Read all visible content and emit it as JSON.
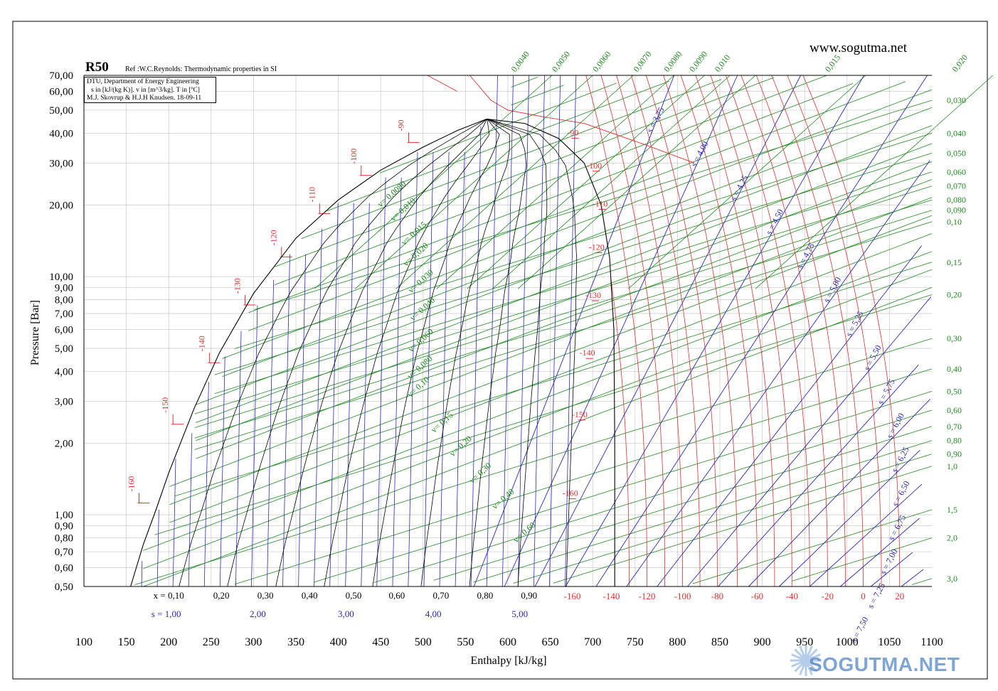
{
  "header": {
    "refrigerant": "R50",
    "reference": "Ref :W.C.Reynolds: Thermodynamic properties in SI",
    "website": "www.sogutma.net",
    "info_lines": [
      "DTU, Department of Energy Engineering",
      "s in [kJ/(kg K)]. v in [m^3/kg]. T in [ºC]",
      "M.J. Skovrup & H.J.H Knudsen. 18-09-11"
    ]
  },
  "watermark": {
    "text": "SOGUTMA.NET",
    "colors": {
      "sun": "#7aa6d6",
      "text": "#4a7fc0"
    }
  },
  "colors": {
    "isotherm": "#e03030",
    "isochore": "#1e8a1e",
    "isentrope": "#2a2ab8",
    "saturation": "#000000",
    "grid": "#c8c8c8",
    "quality": "#000000"
  },
  "chart_data": {
    "type": "line",
    "title": "R50",
    "xlabel": "Enthalpy [kJ/kg]",
    "ylabel": "Pressure [Bar]",
    "xlim": [
      100,
      1100
    ],
    "ylim": [
      0.5,
      70
    ],
    "y_scale": "log",
    "grid": true,
    "x_ticks": [
      100,
      150,
      200,
      250,
      300,
      350,
      400,
      450,
      500,
      550,
      600,
      650,
      700,
      750,
      800,
      850,
      900,
      950,
      1000,
      1050,
      1100
    ],
    "y_ticks": [
      {
        "v": 0.5,
        "l": "0,50"
      },
      {
        "v": 0.6,
        "l": "0,60"
      },
      {
        "v": 0.7,
        "l": "0,70"
      },
      {
        "v": 0.8,
        "l": "0,80"
      },
      {
        "v": 0.9,
        "l": "0,90"
      },
      {
        "v": 1.0,
        "l": "1,00"
      },
      {
        "v": 2.0,
        "l": "2,00"
      },
      {
        "v": 3.0,
        "l": "3,00"
      },
      {
        "v": 4.0,
        "l": "4,00"
      },
      {
        "v": 5.0,
        "l": "5,00"
      },
      {
        "v": 6.0,
        "l": "6,00"
      },
      {
        "v": 7.0,
        "l": "7,00"
      },
      {
        "v": 8.0,
        "l": "8,00"
      },
      {
        "v": 9.0,
        "l": "9,00"
      },
      {
        "v": 10.0,
        "l": "10,00"
      },
      {
        "v": 20.0,
        "l": "20,00"
      },
      {
        "v": 30.0,
        "l": "30,00"
      },
      {
        "v": 40.0,
        "l": "40,00"
      },
      {
        "v": 50.0,
        "l": "50,00"
      },
      {
        "v": 60.0,
        "l": "60,00"
      },
      {
        "v": 70.0,
        "l": "70,00"
      }
    ],
    "critical_point": {
      "h": 575,
      "p": 45.9
    },
    "saturation": {
      "liquid": [
        [
          155,
          0.5
        ],
        [
          170,
          0.75
        ],
        [
          185,
          1.05
        ],
        [
          200,
          1.5
        ],
        [
          230,
          2.8
        ],
        [
          260,
          4.8
        ],
        [
          300,
          8.5
        ],
        [
          350,
          14.5
        ],
        [
          400,
          21
        ],
        [
          450,
          28
        ],
        [
          500,
          35
        ],
        [
          540,
          41
        ],
        [
          575,
          45.9
        ]
      ],
      "vapor": [
        [
          575,
          45.9
        ],
        [
          620,
          44
        ],
        [
          660,
          38
        ],
        [
          690,
          30
        ],
        [
          710,
          20
        ],
        [
          720,
          12
        ],
        [
          725,
          6
        ],
        [
          726,
          2
        ],
        [
          726,
          0.5
        ]
      ]
    },
    "quality_labels": [
      {
        "text": "x = 0,10",
        "h": 200
      },
      {
        "text": "0,20",
        "h": 262
      },
      {
        "text": "0,30",
        "h": 314
      },
      {
        "text": "0,40",
        "h": 366
      },
      {
        "text": "0,50",
        "h": 418
      },
      {
        "text": "0,60",
        "h": 469
      },
      {
        "text": "0,70",
        "h": 521
      },
      {
        "text": "0,80",
        "h": 573
      },
      {
        "text": "0,90",
        "h": 625
      }
    ],
    "quality_lines": [
      0.1,
      0.2,
      0.3,
      0.4,
      0.5,
      0.6,
      0.7,
      0.8,
      0.9
    ],
    "entropy_bottom_labels": [
      {
        "text": "s = 1,00",
        "h": 197
      },
      {
        "text": "2,00",
        "h": 305
      },
      {
        "text": "3,00",
        "h": 409
      },
      {
        "text": "4,00",
        "h": 512
      },
      {
        "text": "5,00",
        "h": 614
      }
    ],
    "temperature_bottom_labels": [
      {
        "text": "-160",
        "h": 676
      },
      {
        "text": "-140",
        "h": 722
      },
      {
        "text": "-120",
        "h": 764
      },
      {
        "text": "-100",
        "h": 806
      },
      {
        "text": "-80",
        "h": 847
      },
      {
        "text": "-60",
        "h": 894
      },
      {
        "text": "-40",
        "h": 935
      },
      {
        "text": "-20",
        "h": 977
      },
      {
        "text": "0",
        "h": 1019
      },
      {
        "text": "20",
        "h": 1062
      }
    ],
    "temperature_sat_labels": [
      {
        "text": "-160",
        "p": 1.12,
        "hl": 165,
        "hv": 677
      },
      {
        "text": "-150",
        "p": 2.4,
        "hl": 205,
        "hv": 688
      },
      {
        "text": "-140",
        "p": 4.35,
        "hl": 248,
        "hv": 697
      },
      {
        "text": "-130",
        "p": 7.6,
        "hl": 290,
        "hv": 704
      },
      {
        "text": "-120",
        "p": 12.1,
        "hl": 333,
        "hv": 708
      },
      {
        "text": "-110",
        "p": 18.4,
        "hl": 378,
        "hv": 712
      },
      {
        "text": "-100",
        "p": 26.6,
        "hl": 427,
        "hv": 705
      },
      {
        "text": "-90",
        "p": 36.6,
        "hl": 483,
        "hv": 680
      }
    ],
    "isotherms_T": [
      -160,
      -150,
      -140,
      -130,
      -120,
      -110,
      -100,
      -90,
      -80,
      -70,
      -60,
      -50,
      -40,
      -30,
      -20,
      -10,
      0,
      10,
      20
    ],
    "isentropes": [
      {
        "s": 3.75,
        "label": "s = 3,75"
      },
      {
        "s": 4.0,
        "label": "s = 4,00"
      },
      {
        "s": 4.25,
        "label": "s = 4,25"
      },
      {
        "s": 4.5,
        "label": "s = 4,50"
      },
      {
        "s": 4.75,
        "label": "s = 4,75"
      },
      {
        "s": 5.0,
        "label": "s = 5,00"
      },
      {
        "s": 5.25,
        "label": "s = 5,25"
      },
      {
        "s": 5.5,
        "label": "s = 5,50"
      },
      {
        "s": 5.75,
        "label": "s = 5,75"
      },
      {
        "s": 6.0,
        "label": "s = 6,00"
      },
      {
        "s": 6.25,
        "label": "s = 6,25"
      },
      {
        "s": 6.5,
        "label": "s = 6,50"
      },
      {
        "s": 6.75,
        "label": "s = 6,75"
      },
      {
        "s": 7.0,
        "label": "s = 7,00"
      },
      {
        "s": 7.25,
        "label": "s = 7,25"
      },
      {
        "s": 7.5,
        "label": "s = 7,50"
      }
    ],
    "isochore_top_labels": [
      {
        "text": "0,0040",
        "h": 612
      },
      {
        "text": "0,0050",
        "h": 660
      },
      {
        "text": "0,0060",
        "h": 708
      },
      {
        "text": "0,0070",
        "h": 756
      },
      {
        "text": "0,0080",
        "h": 792
      },
      {
        "text": "0,0090",
        "h": 822
      },
      {
        "text": "0,010",
        "h": 852
      },
      {
        "text": "0,015",
        "h": 982
      },
      {
        "text": "0,020",
        "h": 1132
      }
    ],
    "isochore_right_labels": [
      {
        "text": "0,030",
        "p": 55
      },
      {
        "text": "0,040",
        "p": 40
      },
      {
        "text": "0,050",
        "p": 33
      },
      {
        "text": "0,060",
        "p": 27.5
      },
      {
        "text": "0,070",
        "p": 24
      },
      {
        "text": "0,080",
        "p": 21
      },
      {
        "text": "0,090",
        "p": 19
      },
      {
        "text": "0,10",
        "p": 17
      },
      {
        "text": "0,15",
        "p": 11.5
      },
      {
        "text": "0,20",
        "p": 8.4
      },
      {
        "text": "0,30",
        "p": 5.5
      },
      {
        "text": "0,40",
        "p": 4.1
      },
      {
        "text": "0,50",
        "p": 3.3
      },
      {
        "text": "0,60",
        "p": 2.75
      },
      {
        "text": "0,70",
        "p": 2.35
      },
      {
        "text": "0,80",
        "p": 2.05
      },
      {
        "text": "0,90",
        "p": 1.8
      },
      {
        "text": "1,0",
        "p": 1.6
      },
      {
        "text": "1,5",
        "p": 1.05
      },
      {
        "text": "2,0",
        "p": 0.8
      },
      {
        "text": "3,0",
        "p": 0.54
      }
    ],
    "isochore_inner_labels": [
      {
        "text": "v= 0,0080",
        "h": 450,
        "p": 19.5
      },
      {
        "text": "v= 0,010",
        "h": 465,
        "p": 17.0
      },
      {
        "text": "v= 0,015",
        "h": 478,
        "p": 13.5
      },
      {
        "text": "v= 0,020",
        "h": 480,
        "p": 11.0
      },
      {
        "text": "v= 0,030",
        "h": 486,
        "p": 8.5
      },
      {
        "text": "v= 0,040",
        "h": 488,
        "p": 6.5
      },
      {
        "text": "v= 0,060",
        "h": 486,
        "p": 4.8
      },
      {
        "text": "v= 0,080",
        "h": 485,
        "p": 3.7
      },
      {
        "text": "v= 0,10",
        "h": 485,
        "p": 3.1
      },
      {
        "text": "v= 0,15",
        "h": 513,
        "p": 2.2
      },
      {
        "text": "v= 0,20",
        "h": 535,
        "p": 1.75
      },
      {
        "text": "v= 0,30",
        "h": 558,
        "p": 1.35
      },
      {
        "text": "v= 0,40",
        "h": 585,
        "p": 1.05
      },
      {
        "text": "v= 0,60",
        "h": 610,
        "p": 0.76
      }
    ]
  }
}
